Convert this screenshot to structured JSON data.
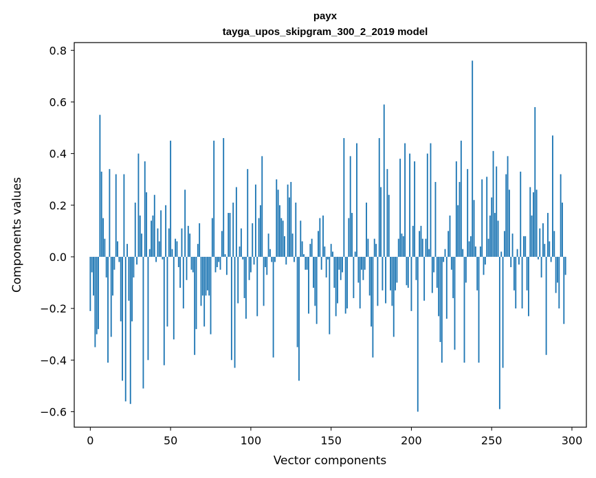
{
  "chart_data": {
    "type": "bar",
    "title": "payx",
    "subtitle": "tayga_upos_skipgram_300_2_2019 model",
    "xlabel": "Vector components",
    "ylabel": "Components values",
    "xlim": [
      -10,
      309
    ],
    "ylim": [
      -0.66,
      0.83
    ],
    "xticks": [
      0,
      50,
      100,
      150,
      200,
      250,
      300
    ],
    "xtick_labels": [
      "0",
      "50",
      "100",
      "150",
      "200",
      "250",
      "300"
    ],
    "yticks": [
      -0.6,
      -0.4,
      -0.2,
      0.0,
      0.2,
      0.4,
      0.6,
      0.8
    ],
    "ytick_labels": [
      "−0.6",
      "−0.4",
      "−0.2",
      "0.0",
      "0.2",
      "0.4",
      "0.6",
      "0.8"
    ],
    "grid": false,
    "bar_color": "#1f77b4",
    "x_start": 0,
    "values": [
      -0.21,
      -0.06,
      -0.15,
      -0.35,
      -0.3,
      -0.28,
      0.55,
      0.33,
      0.15,
      0.07,
      -0.08,
      -0.41,
      0.34,
      -0.31,
      -0.15,
      -0.05,
      0.32,
      0.06,
      -0.02,
      -0.25,
      -0.48,
      0.32,
      -0.56,
      0.05,
      -0.17,
      -0.57,
      -0.25,
      -0.08,
      0.21,
      -0.03,
      0.4,
      0.16,
      0.09,
      -0.51,
      0.37,
      0.25,
      -0.4,
      0.03,
      0.14,
      0.16,
      0.24,
      -0.02,
      0.11,
      0.06,
      0.18,
      -0.01,
      -0.42,
      0.2,
      -0.27,
      0.11,
      0.45,
      0.03,
      -0.32,
      0.07,
      0.06,
      -0.04,
      -0.12,
      0.11,
      -0.2,
      0.26,
      -0.09,
      0.12,
      0.09,
      -0.05,
      -0.06,
      -0.38,
      -0.28,
      0.05,
      0.13,
      -0.19,
      -0.15,
      -0.27,
      -0.15,
      -0.13,
      -0.15,
      -0.3,
      0.15,
      0.45,
      -0.06,
      -0.04,
      -0.02,
      -0.05,
      0.1,
      0.46,
      0.01,
      -0.07,
      0.17,
      0.17,
      -0.4,
      0.21,
      -0.43,
      0.27,
      -0.18,
      0.04,
      0.11,
      -0.01,
      -0.16,
      -0.24,
      0.34,
      -0.09,
      -0.06,
      0.13,
      -0.03,
      0.28,
      -0.23,
      0.15,
      0.2,
      0.39,
      -0.19,
      -0.04,
      -0.07,
      0.09,
      0.03,
      -0.02,
      -0.39,
      -0.02,
      0.3,
      0.26,
      0.2,
      0.15,
      0.14,
      0.08,
      -0.03,
      0.28,
      0.23,
      0.29,
      0.09,
      -0.02,
      0.21,
      -0.35,
      -0.48,
      0.14,
      0.06,
      0.01,
      -0.05,
      -0.05,
      -0.22,
      0.05,
      0.07,
      -0.12,
      -0.19,
      -0.26,
      0.1,
      0.15,
      -0.05,
      0.16,
      0.04,
      -0.08,
      -0.01,
      -0.3,
      0.05,
      0.02,
      -0.12,
      -0.23,
      -0.18,
      -0.05,
      -0.09,
      -0.06,
      0.46,
      -0.22,
      -0.2,
      0.15,
      0.39,
      0.17,
      -0.16,
      0.02,
      0.44,
      -0.1,
      -0.2,
      -0.05,
      -0.09,
      -0.05,
      0.21,
      0.07,
      -0.15,
      -0.27,
      -0.39,
      0.07,
      0.05,
      -0.19,
      0.46,
      0.27,
      -0.13,
      0.59,
      -0.18,
      0.34,
      0.24,
      -0.13,
      -0.19,
      -0.31,
      -0.13,
      -0.1,
      0.07,
      0.38,
      0.09,
      0.08,
      0.44,
      -0.11,
      -0.12,
      0.4,
      -0.21,
      0.12,
      0.37,
      -0.09,
      -0.6,
      0.1,
      0.12,
      0.07,
      -0.17,
      0.07,
      0.4,
      0.03,
      0.44,
      -0.14,
      -0.06,
      0.29,
      -0.12,
      -0.23,
      -0.33,
      -0.41,
      -0.02,
      0.03,
      -0.24,
      0.1,
      0.16,
      -0.05,
      -0.16,
      -0.36,
      0.37,
      0.2,
      0.29,
      0.45,
      0.03,
      -0.41,
      -0.1,
      0.34,
      0.06,
      0.08,
      0.76,
      0.22,
      0.04,
      -0.13,
      -0.41,
      0.04,
      0.3,
      -0.07,
      -0.03,
      0.31,
      0.07,
      0.16,
      0.23,
      0.41,
      0.17,
      0.35,
      0.14,
      -0.59,
      0.02,
      -0.43,
      0.1,
      0.32,
      0.39,
      0.26,
      -0.04,
      0.09,
      -0.13,
      -0.2,
      0.03,
      -0.03,
      0.33,
      -0.2,
      0.08,
      0.08,
      -0.13,
      -0.23,
      0.27,
      0.16,
      0.25,
      0.58,
      0.26,
      -0.01,
      0.11,
      -0.08,
      0.13,
      0.05,
      -0.38,
      0.17,
      0.06,
      -0.02,
      0.47,
      0.1,
      -0.14,
      -0.1,
      -0.2,
      0.32,
      0.21,
      -0.26,
      -0.07
    ]
  }
}
